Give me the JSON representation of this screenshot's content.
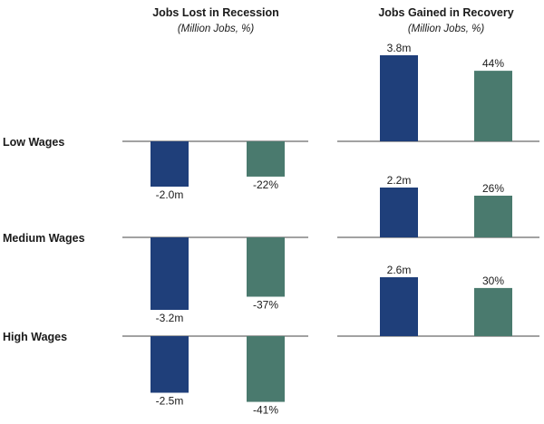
{
  "chart_data": [
    {
      "type": "bar",
      "title": "Jobs Lost in Recession",
      "subtitle": "(Million Jobs, %)",
      "categories": [
        "Low Wages",
        "Medium Wages",
        "High Wages"
      ],
      "series": [
        {
          "values": [
            -2.0,
            -3.2,
            -2.5
          ],
          "labels": [
            "-2.0m",
            "-3.2m",
            "-2.5m"
          ],
          "color": "#1f3f7a"
        },
        {
          "values": [
            -22,
            -37,
            -41
          ],
          "labels": [
            "-22%",
            "-37%",
            "-41%"
          ],
          "color": "#4a7a6e"
        }
      ]
    },
    {
      "type": "bar",
      "title": "Jobs Gained in Recovery",
      "subtitle": "(Million Jobs, %)",
      "categories": [
        "Low Wages",
        "Medium Wages",
        "High Wages"
      ],
      "series": [
        {
          "values": [
            3.8,
            2.2,
            2.6
          ],
          "labels": [
            "3.8m",
            "2.2m",
            "2.6m"
          ],
          "color": "#1f3f7a"
        },
        {
          "values": [
            44,
            26,
            30
          ],
          "labels": [
            "44%",
            "26%",
            "30%"
          ],
          "color": "#4a7a6e"
        }
      ]
    }
  ]
}
